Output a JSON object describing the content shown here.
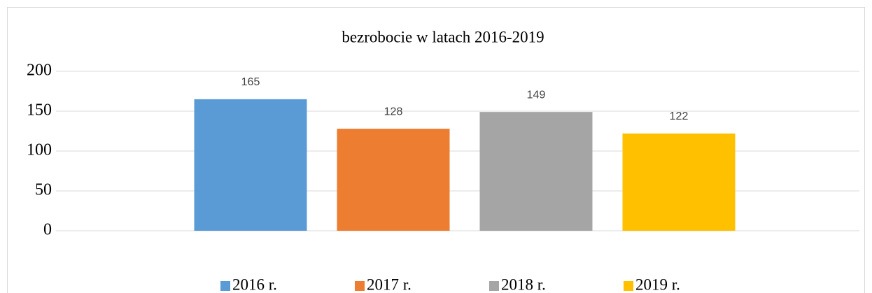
{
  "chart_data": {
    "type": "bar",
    "title": "bezrobocie w latach 2016-2019",
    "categories": [
      null
    ],
    "series": [
      {
        "name": "2016 r.",
        "color": "#5b9bd5",
        "values": [
          165
        ]
      },
      {
        "name": "2017 r.",
        "color": "#ed7d31",
        "values": [
          128
        ]
      },
      {
        "name": "2018 r.",
        "color": "#a5a5a5",
        "values": [
          149
        ]
      },
      {
        "name": "2019 r.",
        "color": "#ffc000",
        "values": [
          122
        ]
      }
    ],
    "ylim": [
      0,
      200
    ],
    "yticks": [
      0,
      50,
      100,
      150,
      200
    ],
    "grid": true,
    "legend": "bottom"
  }
}
